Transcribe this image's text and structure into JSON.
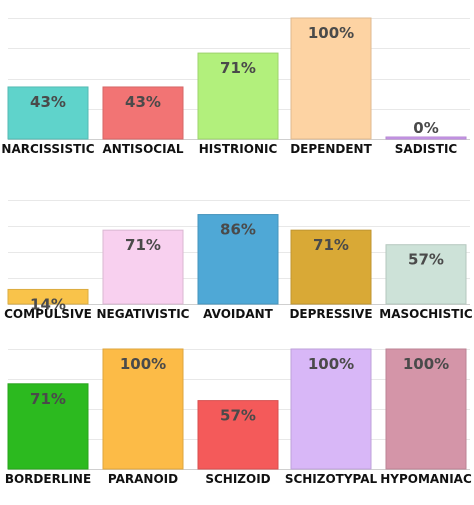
{
  "chart_data": [
    {
      "type": "bar",
      "ylim": [
        0,
        100
      ],
      "grid": true,
      "categories": [
        "NARCISSISTIC",
        "ANTISOCIAL",
        "HISTRIONIC",
        "DEPENDENT",
        "SADISTIC"
      ],
      "values": [
        43,
        43,
        71,
        100,
        0
      ],
      "value_labels": [
        "43%",
        "43%",
        "71%",
        "100%",
        "0%"
      ],
      "colors": [
        "#5fd3cb",
        "#f27474",
        "#b2f07c",
        "#fdd3a3",
        "#cc99ee"
      ]
    },
    {
      "type": "bar",
      "ylim": [
        0,
        100
      ],
      "grid": true,
      "categories": [
        "COMPULSIVE",
        "NEGATIVISTIC",
        "AVOIDANT",
        "DEPRESSIVE",
        "MASOCHISTIC"
      ],
      "values": [
        14,
        71,
        86,
        71,
        57
      ],
      "value_labels": [
        "14%",
        "71%",
        "86%",
        "71%",
        "57%"
      ],
      "colors": [
        "#f9c34a",
        "#f8d0ef",
        "#4fa8d6",
        "#d9a936",
        "#cde2d8"
      ]
    },
    {
      "type": "bar",
      "ylim": [
        0,
        100
      ],
      "grid": true,
      "categories": [
        "BORDERLINE",
        "PARANOID",
        "SCHIZOID",
        "SCHIZOTYPAL",
        "HYPOMANIAC"
      ],
      "values": [
        71,
        100,
        57,
        100,
        100
      ],
      "value_labels": [
        "71%",
        "100%",
        "57%",
        "100%",
        "100%"
      ],
      "colors": [
        "#2cba1f",
        "#fcbb47",
        "#f45a5a",
        "#d8b7f7",
        "#d495a8"
      ]
    }
  ]
}
